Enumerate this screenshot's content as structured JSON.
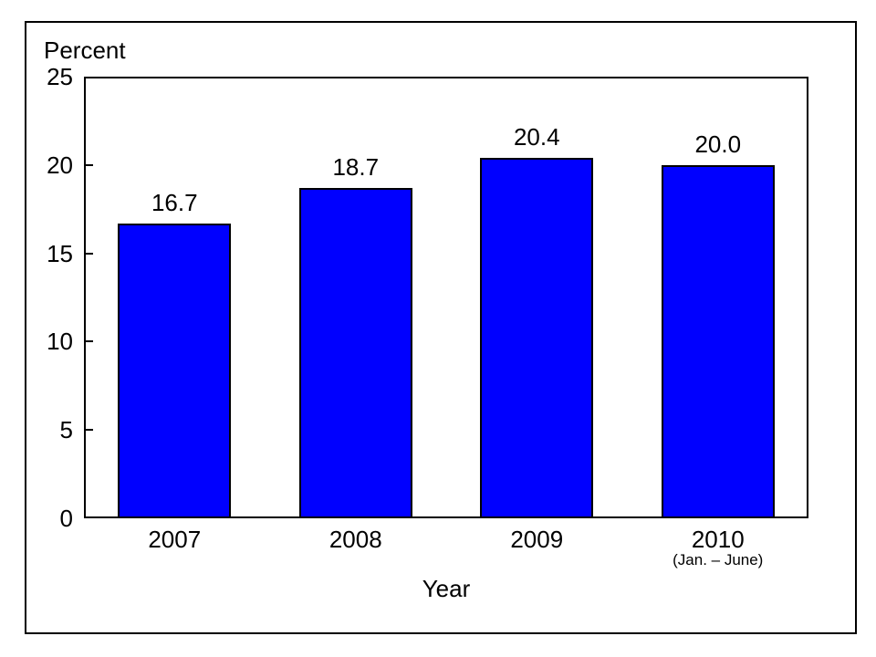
{
  "chart_data": {
    "type": "bar",
    "y_unit_label": "Percent",
    "xlabel": "Year",
    "categories": [
      "2007",
      "2008",
      "2009",
      "2010"
    ],
    "category_sublabels": [
      "",
      "",
      "",
      "(Jan. – June)"
    ],
    "values": [
      16.7,
      18.7,
      20.4,
      20.0
    ],
    "data_labels": [
      "16.7",
      "18.7",
      "20.4",
      "20.0"
    ],
    "ylim": [
      0,
      25
    ],
    "yticks": [
      0,
      5,
      10,
      15,
      20,
      25
    ],
    "grid": false,
    "legend": "none",
    "bar_color": "#0000FF",
    "bar_border_color": "#000000",
    "text_color": "#000000",
    "background_color": "#FFFFFF"
  }
}
